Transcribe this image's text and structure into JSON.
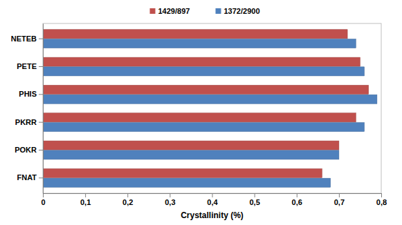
{
  "chart_data": {
    "type": "bar",
    "orientation": "horizontal",
    "x_label": "Crystallinity (%)",
    "categories": [
      "FNAT",
      "POKR",
      "PKRR",
      "PHIS",
      "PETE",
      "NETEB"
    ],
    "series": [
      {
        "name": "1429/897",
        "color": "#c0504d",
        "values": [
          0.66,
          0.7,
          0.74,
          0.77,
          0.75,
          0.72
        ]
      },
      {
        "name": "1372/2900",
        "color": "#4f81bd",
        "values": [
          0.68,
          0.7,
          0.76,
          0.79,
          0.76,
          0.74
        ]
      }
    ],
    "xlim": [
      0,
      0.8
    ],
    "xticks": [
      0,
      {
        "value": 0.1,
        "label": "0,1"
      },
      {
        "value": 0.2,
        "label": "0,2"
      },
      {
        "value": 0.3,
        "label": "0,3"
      },
      {
        "value": 0.4,
        "label": "0,4"
      },
      {
        "value": 0.5,
        "label": "0,5"
      },
      {
        "value": 0.6,
        "label": "0,6"
      },
      {
        "value": 0.7,
        "label": "0,7"
      },
      {
        "value": 0.8,
        "label": "0,8"
      }
    ],
    "grid": false,
    "legend": "top"
  }
}
